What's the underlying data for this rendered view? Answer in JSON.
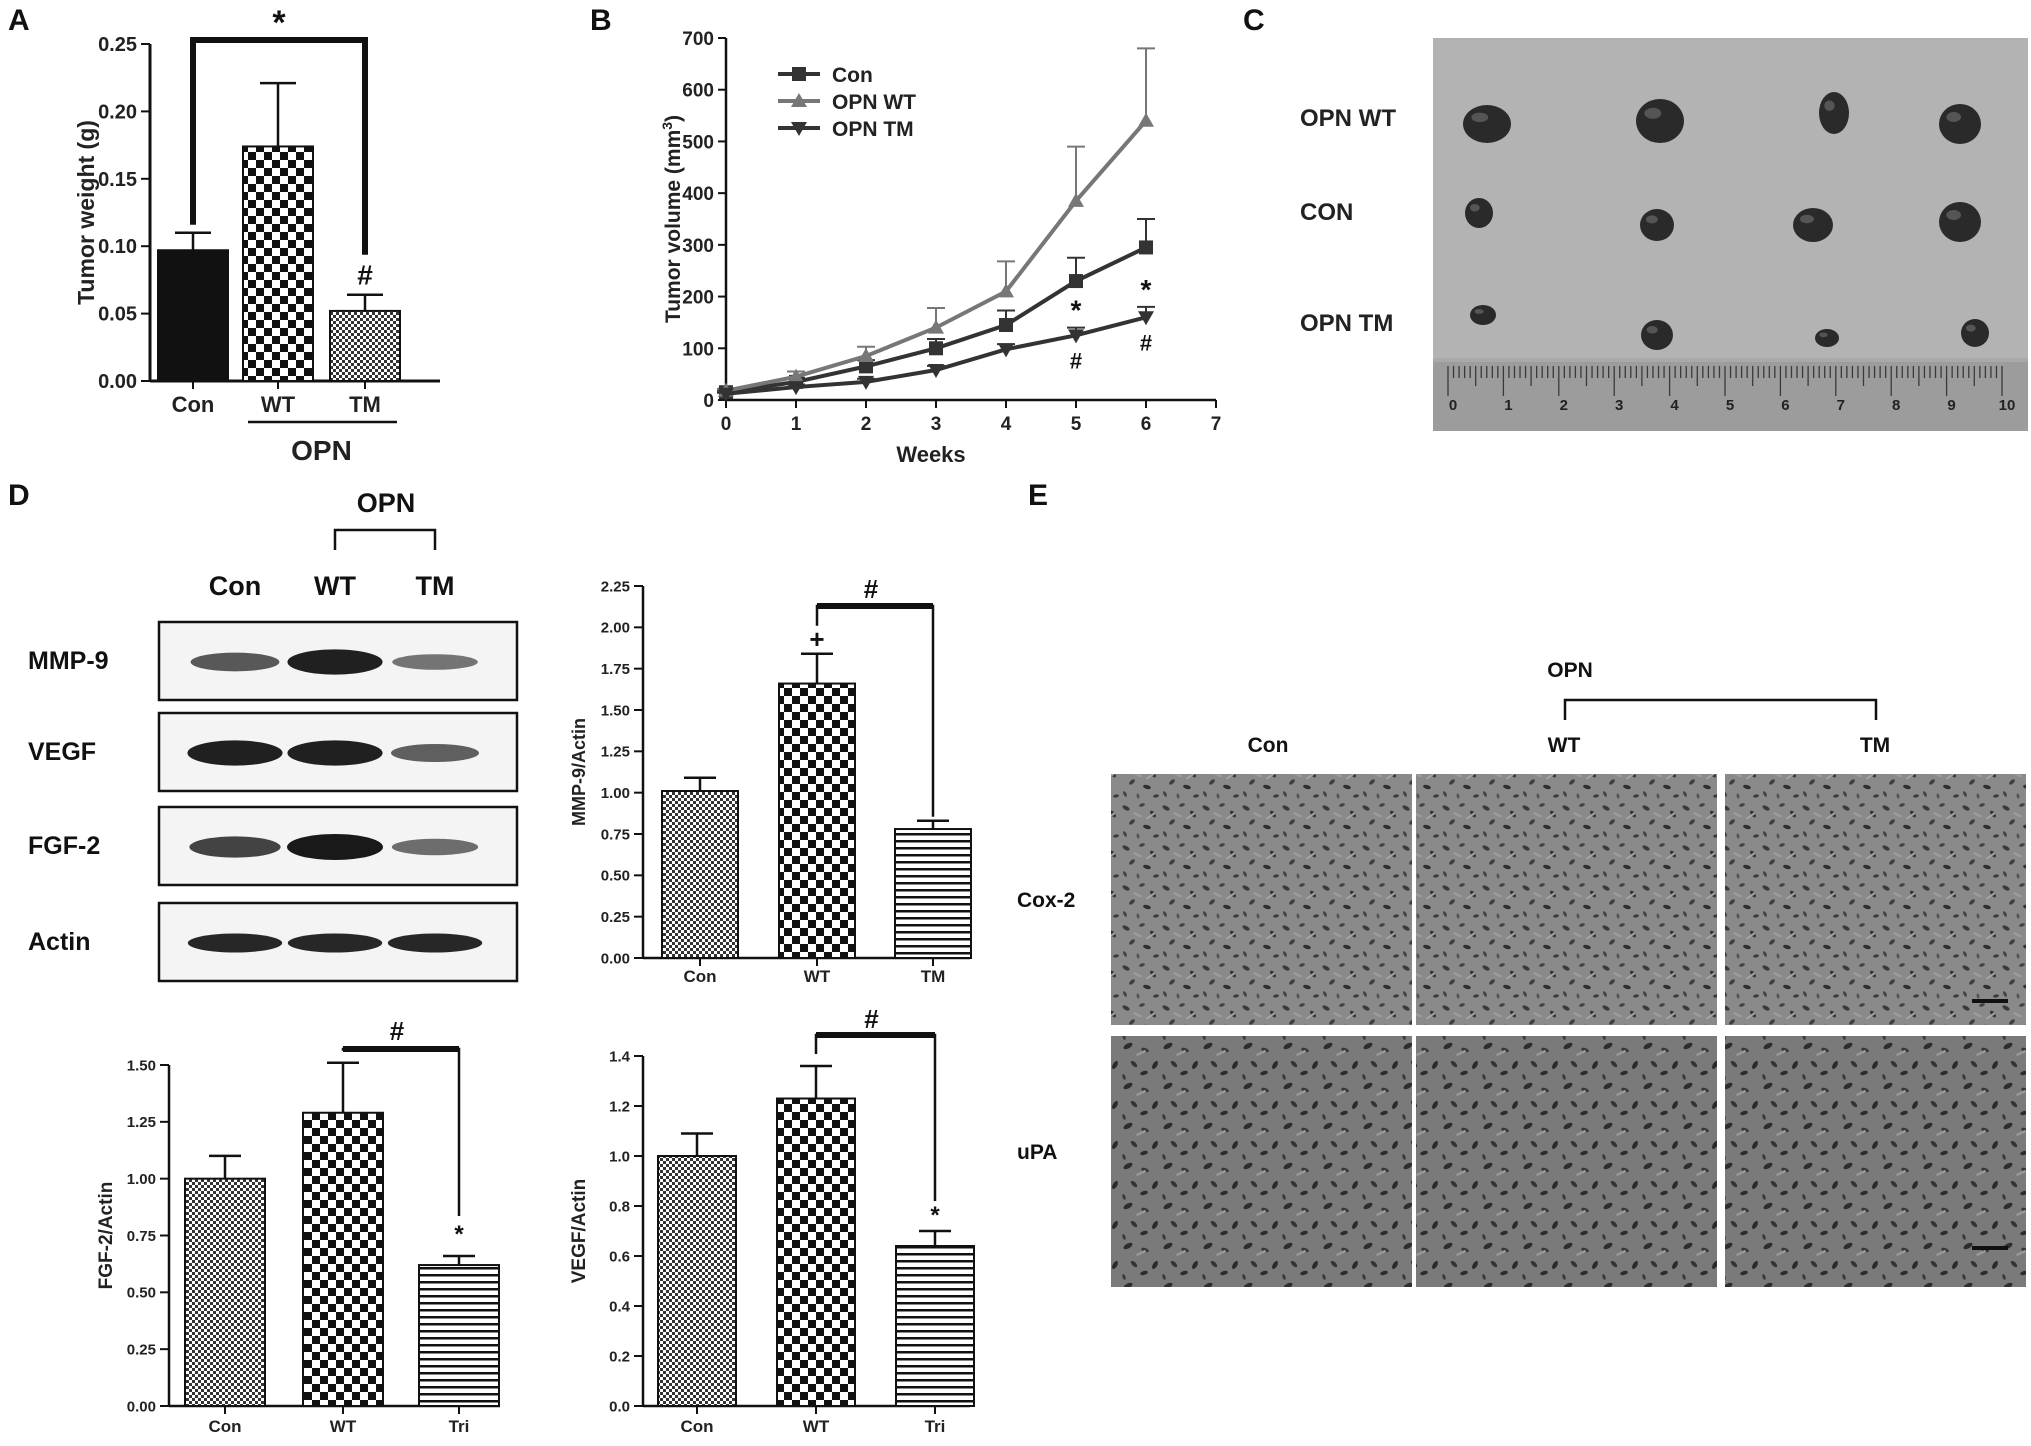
{
  "panels": {
    "a": "A",
    "b": "B",
    "c": "C",
    "d": "D",
    "e": "E"
  },
  "photo_c": {
    "rows": [
      "OPN WT",
      "CON",
      "OPN TM"
    ],
    "ruler_numbers": [
      "0",
      "1",
      "2",
      "3",
      "4",
      "5",
      "6",
      "7",
      "8",
      "9",
      "10"
    ]
  },
  "western_blot": {
    "group_label": "OPN",
    "lanes": [
      "Con",
      "WT",
      "TM"
    ],
    "rows": [
      "MMP-9",
      "VEGF",
      "FGF-2",
      "Actin"
    ],
    "band_intensity": [
      [
        0.55,
        0.95,
        0.35
      ],
      [
        0.95,
        0.95,
        0.5
      ],
      [
        0.7,
        1.0,
        0.4
      ],
      [
        0.9,
        0.9,
        0.9
      ]
    ]
  },
  "histology_e": {
    "group_label": "OPN",
    "columns": [
      "Con",
      "WT",
      "TM"
    ],
    "rows": [
      "Cox-2",
      "uPA"
    ]
  },
  "chart_data": [
    {
      "id": "A",
      "type": "bar",
      "ylabel": "Tumor weight (g)",
      "ylim": [
        0,
        0.25
      ],
      "yticks": [
        "0.00",
        "0.05",
        "0.10",
        "0.15",
        "0.20",
        "0.25"
      ],
      "categories": [
        "Con",
        "WT",
        "TM"
      ],
      "values": [
        0.097,
        0.174,
        0.052
      ],
      "errors": [
        0.013,
        0.047,
        0.012
      ],
      "group_label": "OPN",
      "annotations": {
        "sig": "*",
        "hash": "#"
      }
    },
    {
      "id": "B",
      "type": "line",
      "xlabel": "Weeks",
      "ylabel": "Tumor volume (mm",
      "ylabel_sup": "3",
      "ylabel_end": ")",
      "xlim": [
        0,
        7
      ],
      "ylim": [
        0,
        700
      ],
      "xticks": [
        "0",
        "1",
        "2",
        "3",
        "4",
        "5",
        "6",
        "7"
      ],
      "yticks": [
        "0",
        "100",
        "200",
        "300",
        "400",
        "500",
        "600",
        "700"
      ],
      "x": [
        0,
        1,
        2,
        3,
        4,
        5,
        6
      ],
      "series": [
        {
          "name": "Con",
          "color": "#333333",
          "marker": "square",
          "values": [
            15,
            35,
            65,
            100,
            145,
            230,
            295
          ],
          "errors": [
            3,
            8,
            12,
            18,
            28,
            45,
            55
          ]
        },
        {
          "name": "OPN WT",
          "color": "#777777",
          "marker": "triangle-up",
          "values": [
            18,
            45,
            85,
            140,
            210,
            385,
            540
          ],
          "errors": [
            3,
            10,
            18,
            38,
            58,
            105,
            140
          ]
        },
        {
          "name": "OPN TM",
          "color": "#333333",
          "marker": "triangle-down",
          "values": [
            12,
            25,
            35,
            58,
            98,
            125,
            160
          ],
          "errors": [
            2,
            5,
            6,
            8,
            10,
            15,
            20
          ]
        }
      ],
      "annotations": {
        "sig": "*",
        "hash": "#"
      }
    },
    {
      "id": "D-MMP9",
      "type": "bar",
      "ylabel": "MMP-9/Actin",
      "ylim": [
        0,
        2.25
      ],
      "yticks": [
        "0.00",
        "0.25",
        "0.50",
        "0.75",
        "1.00",
        "1.25",
        "1.50",
        "1.75",
        "2.00",
        "2.25"
      ],
      "categories": [
        "Con",
        "WT",
        "TM"
      ],
      "values": [
        1.01,
        1.66,
        0.78
      ],
      "errors": [
        0.08,
        0.18,
        0.05
      ],
      "annotations": {
        "plus": "+",
        "hash": "#"
      }
    },
    {
      "id": "D-FGF2",
      "type": "bar",
      "ylabel": "FGF-2/Actin",
      "ylim": [
        0,
        1.5
      ],
      "yticks": [
        "0.00",
        "0.25",
        "0.50",
        "0.75",
        "1.00",
        "1.25",
        "1.50"
      ],
      "categories": [
        "Con",
        "WT",
        "Tri"
      ],
      "values": [
        1.0,
        1.29,
        0.62
      ],
      "errors": [
        0.1,
        0.22,
        0.04
      ],
      "annotations": {
        "sig": "*",
        "hash": "#"
      }
    },
    {
      "id": "D-VEGF",
      "type": "bar",
      "ylabel": "VEGF/Actin",
      "ylim": [
        0,
        1.4
      ],
      "yticks": [
        "0.0",
        "0.2",
        "0.4",
        "0.6",
        "0.8",
        "1.0",
        "1.2",
        "1.4"
      ],
      "categories": [
        "Con",
        "WT",
        "Tri"
      ],
      "values": [
        1.0,
        1.23,
        0.64
      ],
      "errors": [
        0.09,
        0.13,
        0.06
      ],
      "annotations": {
        "sig": "*",
        "hash": "#"
      }
    }
  ]
}
